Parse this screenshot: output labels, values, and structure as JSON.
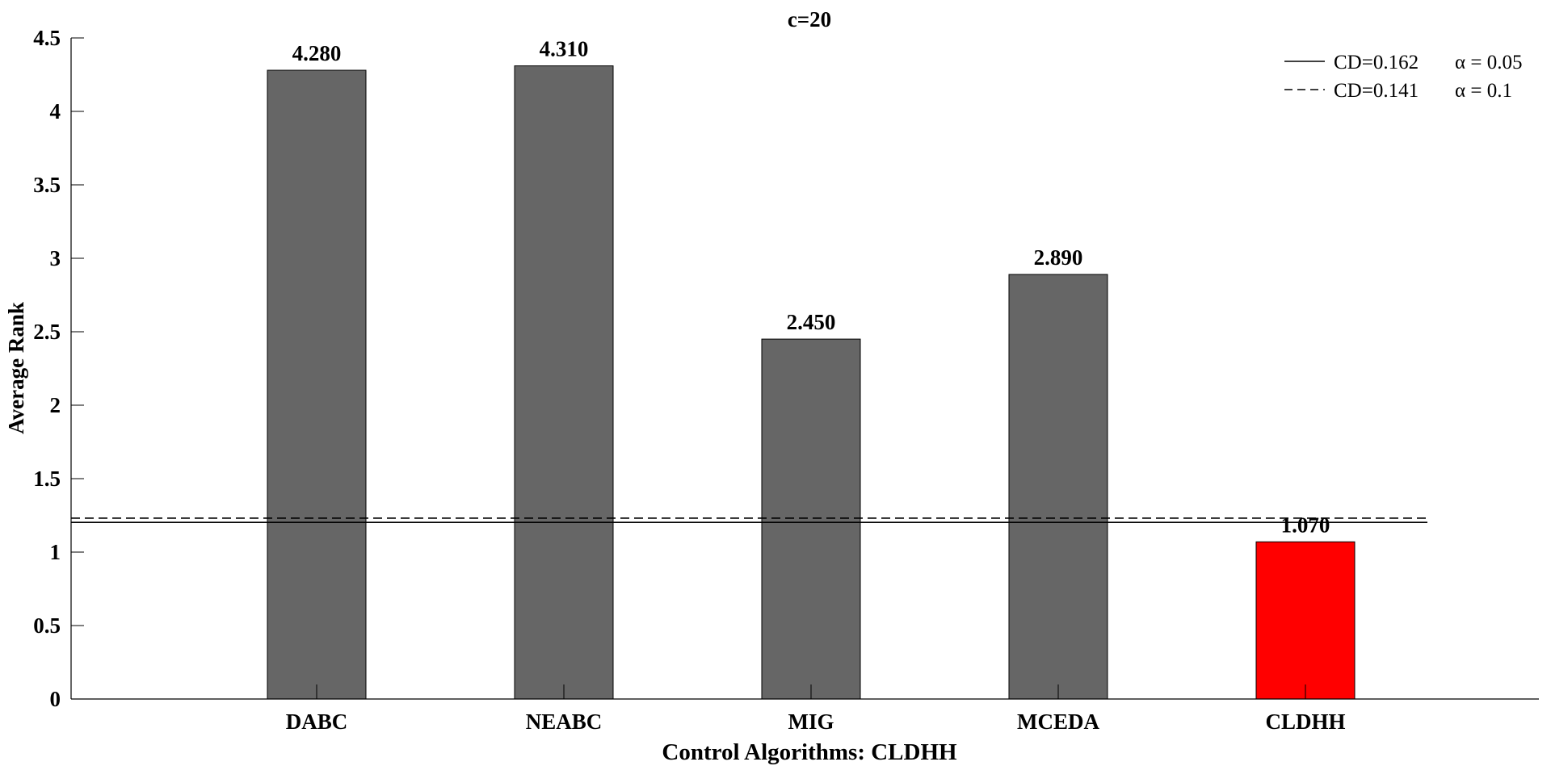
{
  "chart_data": {
    "type": "bar",
    "title": "c=20",
    "xlabel": "Control Algorithms: CLDHH",
    "ylabel": "Average Rank",
    "categories": [
      "DABC",
      "NEABC",
      "MIG",
      "MCEDA",
      "CLDHH"
    ],
    "values": [
      4.28,
      4.31,
      2.45,
      2.89,
      1.07
    ],
    "value_labels": [
      "4.280",
      "4.310",
      "2.450",
      "2.890",
      "1.070"
    ],
    "bar_colors": [
      "#666666",
      "#666666",
      "#666666",
      "#666666",
      "#ff0000"
    ],
    "ylim": [
      0,
      4.5
    ],
    "yticks": [
      0,
      0.5,
      1,
      1.5,
      2,
      2.5,
      3,
      3.5,
      4,
      4.5
    ],
    "ytick_labels": [
      "0",
      "0.5",
      "1",
      "1.5",
      "2",
      "2.5",
      "3",
      "3.5",
      "4",
      "4.5"
    ],
    "reference_lines": [
      {
        "value": 1.202,
        "style": "solid",
        "legend_cd": "CD=0.162",
        "legend_alpha": "α = 0.05"
      },
      {
        "value": 1.231,
        "style": "dashed",
        "legend_cd": "CD=0.141",
        "legend_alpha": "α = 0.1"
      }
    ],
    "legend_position": "top-right",
    "grid": false
  }
}
